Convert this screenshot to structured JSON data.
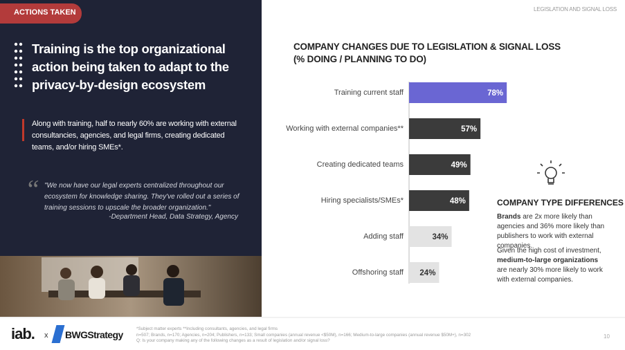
{
  "tag": "ACTIONS TAKEN",
  "header_right": "LEGISLATION AND SIGNAL LOSS",
  "headline": "Training is the top organizational action being taken to adapt to the privacy-by-design ecosystem",
  "body": "Along with training, half to nearly 60% are working with external consultancies, agencies, and legal firms, creating dedicated teams, and/or hiring SMEs*.",
  "quote": {
    "mark": "“",
    "text": "\"We now have our legal experts centralized throughout our ecosystem for knowledge sharing. They've rolled out a series of training sessions to upscale the broader organization.\"",
    "attribution": "-Department Head, Data Strategy, Agency"
  },
  "chart_data": {
    "type": "bar",
    "orientation": "horizontal",
    "title": "COMPANY CHANGES DUE TO LEGISLATION & SIGNAL LOSS",
    "subtitle": "(% DOING / PLANNING TO DO)",
    "categories": [
      "Training current staff",
      "Working with external companies**",
      "Creating dedicated teams",
      "Hiring specialists/SMEs*",
      "Adding staff",
      "Offshoring staff"
    ],
    "values": [
      78,
      57,
      49,
      48,
      34,
      24
    ],
    "value_labels": [
      "78%",
      "57%",
      "49%",
      "48%",
      "34%",
      "24%"
    ],
    "colors": [
      "#6a66d3",
      "#3b3b3b",
      "#3b3b3b",
      "#3b3b3b",
      "#e3e3e3",
      "#e3e3e3"
    ],
    "xlim": [
      0,
      100
    ]
  },
  "sidebar": {
    "title": "COMPANY TYPE DIFFERENCES",
    "paragraphs": [
      {
        "bold": "Brands",
        "after": " are 2x more likely than agencies and 36% more likely than publishers to work with external companies."
      },
      {
        "before": "Given the high cost of investment, ",
        "bold": "medium-to-large organizations",
        "after": " are nearly 30% more likely to work with external companies."
      }
    ]
  },
  "footer": {
    "logo_left": "iab.",
    "separator": "x",
    "logo_right": "BWGStrategy",
    "notes": [
      "*Subject matter experts  **Including consultants, agencies, and legal firms",
      "n=507; Brands, n=170; Agencies, n=204; Publishers, n=133; Small companies (annual revenue <$50M), n=166; Medium-to-large companies (annual revenue $50M+), n=302",
      "Q: Is your company making any of the following changes as a result of legislation and/or signal loss?"
    ],
    "page": "10"
  }
}
